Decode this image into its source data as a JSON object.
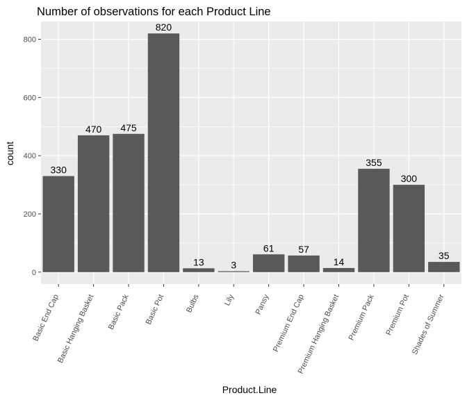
{
  "chart_data": {
    "type": "bar",
    "title": "Number of observations for each Product Line",
    "xlabel": "Product.Line",
    "ylabel": "count",
    "categories": [
      "Basic End Cap",
      "Basic Hanging Basket",
      "Basic Pack",
      "Basic Pot",
      "Bulbs",
      "Lily",
      "Pansy",
      "Premium End Cap",
      "Premium Hanging Basket",
      "Premium Pack",
      "Premium Pot",
      "Shades of Summer"
    ],
    "values": [
      330,
      470,
      475,
      820,
      13,
      3,
      61,
      57,
      14,
      355,
      300,
      35
    ],
    "data_labels": [
      "330",
      "470",
      "475",
      "820",
      "13",
      "3",
      "61",
      "57",
      "14",
      "355",
      "300",
      "35"
    ],
    "ylim": [
      -41,
      861
    ],
    "y_ticks": [
      0,
      200,
      400,
      600,
      800
    ],
    "y_tick_labels": [
      "0",
      "200",
      "400",
      "600",
      "800"
    ],
    "grid": true,
    "colors": {
      "bar": "#595959",
      "panel": "#ebebeb",
      "grid": "#ffffff"
    }
  }
}
